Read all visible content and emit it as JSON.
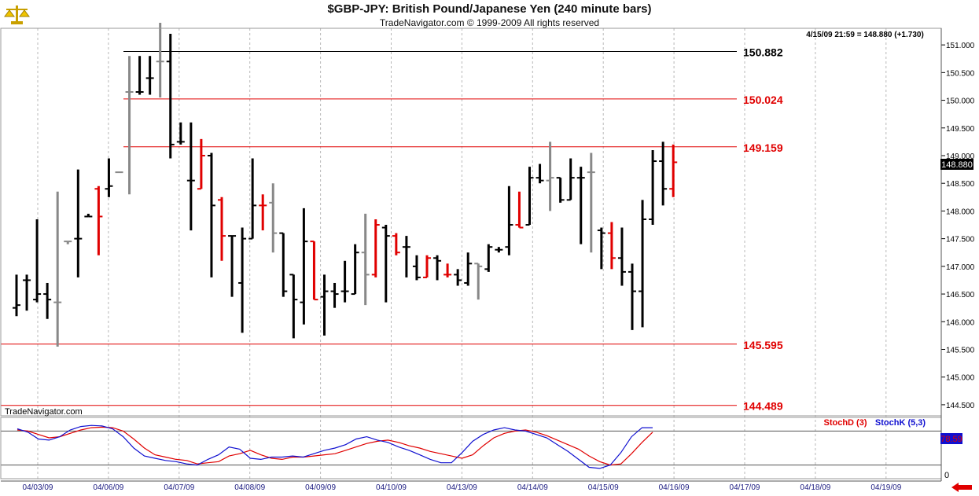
{
  "chart_data": [
    {
      "type": "ohlc",
      "title": "$GBP-JPY:  British Pound/Japanese Yen  (240 minute bars)",
      "subtitle": "TradeNavigator.com © 1999-2009 All rights reserved",
      "watermark": "TradeNavigator.com",
      "last_info": "4/15/09 21:59 = 148.880 (+1.730)",
      "last_price": "148.880",
      "ylim": [
        144.3,
        151.3
      ],
      "y_ticks": [
        "144.500",
        "145.000",
        "145.500",
        "146.000",
        "146.500",
        "147.000",
        "147.500",
        "148.000",
        "148.500",
        "149.000",
        "149.500",
        "150.000",
        "150.500",
        "151.000"
      ],
      "x_labels": [
        "04/03/09",
        "04/06/09",
        "04/07/09",
        "04/08/09",
        "04/09/09",
        "04/10/09",
        "04/13/09",
        "04/14/09",
        "04/15/09",
        "04/16/09",
        "04/17/09",
        "04/18/09",
        "04/19/09"
      ],
      "levels": [
        {
          "value": 150.882,
          "label": "150.882",
          "color": "#000000"
        },
        {
          "value": 150.024,
          "label": "150.024",
          "color": "#e00000"
        },
        {
          "value": 149.159,
          "label": "149.159",
          "color": "#e00000"
        },
        {
          "value": 145.595,
          "label": "145.595",
          "color": "#e00000"
        },
        {
          "value": 144.489,
          "label": "144.489",
          "color": "#e00000"
        }
      ],
      "colors": {
        "up": "#000000",
        "down": "#e00000",
        "neutral": "#888888"
      },
      "bars": [
        {
          "o": 146.25,
          "h": 146.85,
          "l": 146.1,
          "c": 146.3,
          "k": "up"
        },
        {
          "o": 146.75,
          "h": 146.85,
          "l": 146.2,
          "c": 146.75,
          "k": "up"
        },
        {
          "o": 146.4,
          "h": 147.85,
          "l": 146.35,
          "c": 146.5,
          "k": "up"
        },
        {
          "o": 146.5,
          "h": 146.7,
          "l": 146.05,
          "c": 146.4,
          "k": "up"
        },
        {
          "o": 146.35,
          "h": 148.35,
          "l": 145.55,
          "c": 146.35,
          "k": "neutral"
        },
        {
          "o": 147.45,
          "h": 147.45,
          "l": 147.4,
          "c": 147.45,
          "k": "neutral"
        },
        {
          "o": 147.5,
          "h": 148.75,
          "l": 146.8,
          "c": 147.5,
          "k": "up"
        },
        {
          "o": 147.9,
          "h": 147.95,
          "l": 147.9,
          "c": 147.9,
          "k": "up"
        },
        {
          "o": 148.4,
          "h": 148.45,
          "l": 147.2,
          "c": 147.9,
          "k": "down"
        },
        {
          "o": 148.4,
          "h": 148.95,
          "l": 148.25,
          "c": 148.45,
          "k": "up"
        },
        {
          "o": 148.7,
          "h": 148.7,
          "l": 148.7,
          "c": 148.7,
          "k": "neutral"
        },
        {
          "o": 150.15,
          "h": 150.8,
          "l": 148.3,
          "c": 150.15,
          "k": "neutral"
        },
        {
          "o": 150.15,
          "h": 150.8,
          "l": 150.1,
          "c": 150.15,
          "k": "up"
        },
        {
          "o": 150.4,
          "h": 150.8,
          "l": 150.1,
          "c": 150.4,
          "k": "up"
        },
        {
          "o": 150.7,
          "h": 151.4,
          "l": 150.05,
          "c": 150.7,
          "k": "neutral"
        },
        {
          "o": 150.7,
          "h": 151.2,
          "l": 148.95,
          "c": 149.2,
          "k": "up"
        },
        {
          "o": 149.25,
          "h": 149.6,
          "l": 149.2,
          "c": 149.25,
          "k": "up"
        },
        {
          "o": 148.55,
          "h": 149.6,
          "l": 147.65,
          "c": 148.55,
          "k": "up"
        },
        {
          "o": 148.4,
          "h": 149.3,
          "l": 148.4,
          "c": 149.0,
          "k": "down"
        },
        {
          "o": 149.0,
          "h": 149.05,
          "l": 146.8,
          "c": 148.1,
          "k": "up"
        },
        {
          "o": 148.2,
          "h": 148.25,
          "l": 147.1,
          "c": 147.55,
          "k": "down"
        },
        {
          "o": 147.55,
          "h": 147.55,
          "l": 146.45,
          "c": 147.55,
          "k": "up"
        },
        {
          "o": 146.7,
          "h": 147.7,
          "l": 145.8,
          "c": 147.5,
          "k": "up"
        },
        {
          "o": 147.5,
          "h": 148.95,
          "l": 147.5,
          "c": 148.1,
          "k": "up"
        },
        {
          "o": 148.1,
          "h": 148.3,
          "l": 147.65,
          "c": 148.1,
          "k": "down"
        },
        {
          "o": 148.15,
          "h": 148.5,
          "l": 147.25,
          "c": 147.6,
          "k": "neutral"
        },
        {
          "o": 147.6,
          "h": 147.6,
          "l": 146.45,
          "c": 146.55,
          "k": "up"
        },
        {
          "o": 146.85,
          "h": 146.85,
          "l": 145.7,
          "c": 146.4,
          "k": "up"
        },
        {
          "o": 146.35,
          "h": 148.05,
          "l": 145.95,
          "c": 147.45,
          "k": "up"
        },
        {
          "o": 147.45,
          "h": 147.45,
          "l": 146.4,
          "c": 146.4,
          "k": "down"
        },
        {
          "o": 146.45,
          "h": 146.85,
          "l": 145.75,
          "c": 146.55,
          "k": "up"
        },
        {
          "o": 146.55,
          "h": 146.7,
          "l": 146.25,
          "c": 146.5,
          "k": "up"
        },
        {
          "o": 146.55,
          "h": 147.1,
          "l": 146.35,
          "c": 146.55,
          "k": "up"
        },
        {
          "o": 146.5,
          "h": 147.4,
          "l": 146.5,
          "c": 147.25,
          "k": "up"
        },
        {
          "o": 147.25,
          "h": 147.95,
          "l": 146.3,
          "c": 146.85,
          "k": "neutral"
        },
        {
          "o": 146.85,
          "h": 147.85,
          "l": 146.8,
          "c": 147.75,
          "k": "down"
        },
        {
          "o": 147.7,
          "h": 147.75,
          "l": 146.35,
          "c": 147.55,
          "k": "up"
        },
        {
          "o": 147.55,
          "h": 147.6,
          "l": 147.2,
          "c": 147.25,
          "k": "down"
        },
        {
          "o": 147.35,
          "h": 147.55,
          "l": 146.8,
          "c": 147.35,
          "k": "up"
        },
        {
          "o": 147.0,
          "h": 147.2,
          "l": 146.75,
          "c": 146.8,
          "k": "up"
        },
        {
          "o": 146.8,
          "h": 147.2,
          "l": 146.8,
          "c": 147.15,
          "k": "down"
        },
        {
          "o": 147.15,
          "h": 147.2,
          "l": 146.75,
          "c": 147.1,
          "k": "up"
        },
        {
          "o": 146.85,
          "h": 147.05,
          "l": 146.8,
          "c": 146.85,
          "k": "down"
        },
        {
          "o": 146.85,
          "h": 146.95,
          "l": 146.65,
          "c": 146.75,
          "k": "up"
        },
        {
          "o": 146.7,
          "h": 147.25,
          "l": 146.65,
          "c": 147.05,
          "k": "up"
        },
        {
          "o": 147.05,
          "h": 147.05,
          "l": 146.4,
          "c": 147.0,
          "k": "neutral"
        },
        {
          "o": 146.95,
          "h": 147.4,
          "l": 146.9,
          "c": 147.35,
          "k": "up"
        },
        {
          "o": 147.3,
          "h": 147.35,
          "l": 147.25,
          "c": 147.3,
          "k": "up"
        },
        {
          "o": 147.35,
          "h": 148.45,
          "l": 147.2,
          "c": 147.75,
          "k": "up"
        },
        {
          "o": 147.75,
          "h": 148.35,
          "l": 147.7,
          "c": 147.7,
          "k": "down"
        },
        {
          "o": 147.75,
          "h": 148.8,
          "l": 147.75,
          "c": 148.6,
          "k": "up"
        },
        {
          "o": 148.6,
          "h": 148.85,
          "l": 148.5,
          "c": 148.55,
          "k": "up"
        },
        {
          "o": 148.55,
          "h": 149.25,
          "l": 148.0,
          "c": 148.6,
          "k": "neutral"
        },
        {
          "o": 148.6,
          "h": 148.6,
          "l": 148.15,
          "c": 148.2,
          "k": "up"
        },
        {
          "o": 148.2,
          "h": 148.95,
          "l": 148.2,
          "c": 148.6,
          "k": "up"
        },
        {
          "o": 148.6,
          "h": 148.8,
          "l": 147.4,
          "c": 148.6,
          "k": "up"
        },
        {
          "o": 148.7,
          "h": 149.05,
          "l": 147.25,
          "c": 148.7,
          "k": "neutral"
        },
        {
          "o": 147.65,
          "h": 147.7,
          "l": 146.95,
          "c": 147.6,
          "k": "up"
        },
        {
          "o": 147.6,
          "h": 147.8,
          "l": 146.95,
          "c": 147.15,
          "k": "down"
        },
        {
          "o": 147.15,
          "h": 147.7,
          "l": 146.65,
          "c": 146.9,
          "k": "up"
        },
        {
          "o": 146.9,
          "h": 147.05,
          "l": 145.85,
          "c": 146.55,
          "k": "up"
        },
        {
          "o": 146.55,
          "h": 148.2,
          "l": 145.9,
          "c": 147.85,
          "k": "up"
        },
        {
          "o": 147.85,
          "h": 149.1,
          "l": 147.75,
          "c": 148.9,
          "k": "up"
        },
        {
          "o": 148.9,
          "h": 149.25,
          "l": 148.1,
          "c": 148.4,
          "k": "up"
        },
        {
          "o": 148.4,
          "h": 149.2,
          "l": 148.25,
          "c": 148.88,
          "k": "down"
        }
      ]
    },
    {
      "type": "line",
      "title": "Stochastic",
      "legend": [
        "StochD (3)",
        "StochK (5,3)"
      ],
      "y_tick_label": "0",
      "value_label": "78.59",
      "series": [
        {
          "name": "StochD (3)",
          "color": "#e00000",
          "values": [
            82,
            80,
            74,
            68,
            70,
            76,
            82,
            86,
            87,
            86,
            80,
            66,
            50,
            38,
            34,
            30,
            28,
            22,
            24,
            26,
            36,
            40,
            46,
            38,
            32,
            30,
            34,
            34,
            36,
            38,
            40,
            46,
            52,
            58,
            62,
            64,
            60,
            54,
            50,
            44,
            40,
            36,
            32,
            38,
            54,
            68,
            76,
            80,
            82,
            78,
            72,
            64,
            56,
            48,
            36,
            26,
            20,
            22,
            40,
            60,
            78
          ]
        },
        {
          "name": "StochK (5,3)",
          "color": "#1010d0",
          "values": [
            84,
            78,
            66,
            64,
            70,
            82,
            88,
            90,
            89,
            84,
            70,
            50,
            36,
            32,
            28,
            26,
            22,
            20,
            30,
            38,
            52,
            48,
            32,
            30,
            34,
            34,
            36,
            34,
            40,
            46,
            50,
            56,
            66,
            70,
            64,
            60,
            52,
            46,
            38,
            30,
            24,
            24,
            42,
            62,
            74,
            82,
            86,
            82,
            80,
            74,
            68,
            56,
            44,
            30,
            16,
            14,
            20,
            42,
            70,
            86,
            86
          ]
        }
      ]
    }
  ]
}
